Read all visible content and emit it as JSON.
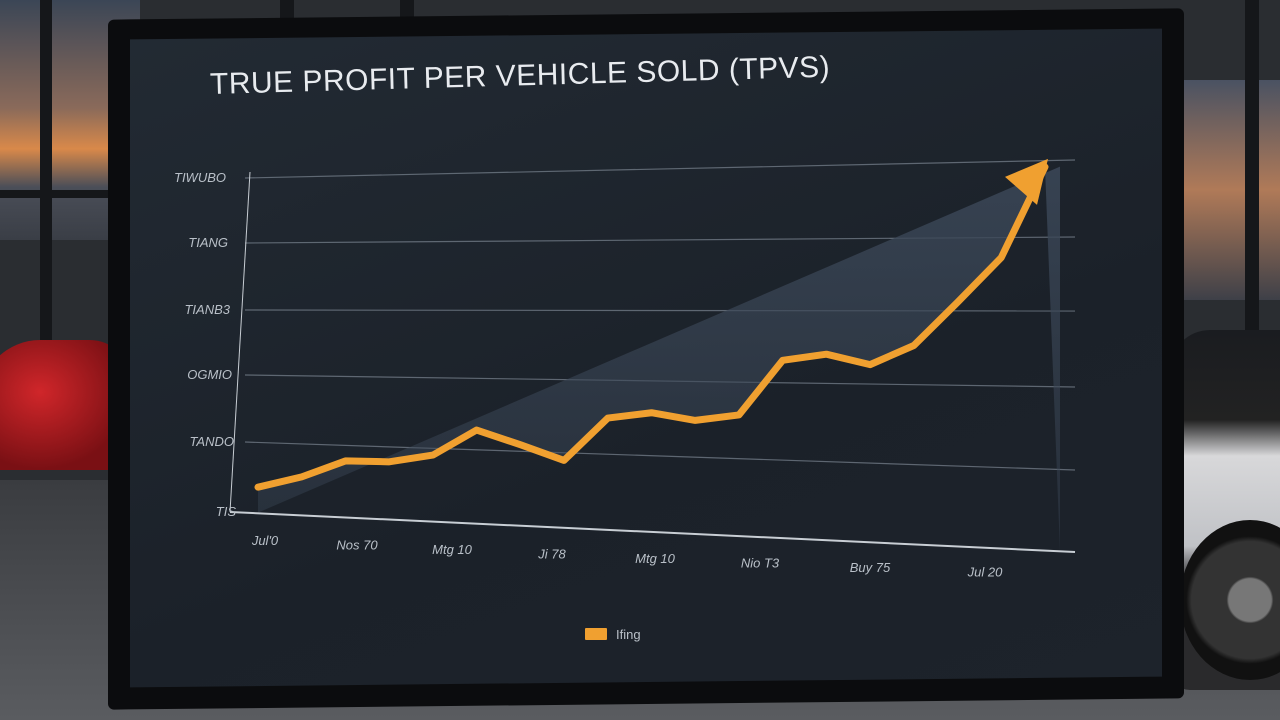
{
  "chart_data": {
    "type": "area",
    "title": "TRUE PROFIT PER VEHICLE SOLD (TPVS)",
    "y_tick_labels": [
      "TIS",
      "TANDO",
      "OGMIO",
      "TIANB3",
      "TIANG",
      "TIWUBO"
    ],
    "x_tick_labels": [
      "Jul'0",
      "Nos 70",
      "Mtg 10",
      "Ji 78",
      "Mtg 10",
      "Nio T3",
      "Buy 75",
      "Jul 20"
    ],
    "series": [
      {
        "values": [
          0.38,
          0.56,
          0.82,
          0.83,
          0.95,
          1.33,
          1.14,
          0.94,
          1.55,
          1.64,
          1.55,
          1.64,
          2.39,
          2.48,
          2.35,
          2.61,
          3.18,
          3.76,
          4.92
        ],
        "color": "#f0a030"
      }
    ],
    "ylim": [
      0,
      5
    ],
    "grid": true,
    "legend": {
      "label": "Ifing",
      "position": "bottom"
    },
    "trend_arrow": true,
    "colors": {
      "line": "#f0a030",
      "area": "#3a4656",
      "grid": "#7a8490",
      "background": "#1d232b"
    }
  }
}
